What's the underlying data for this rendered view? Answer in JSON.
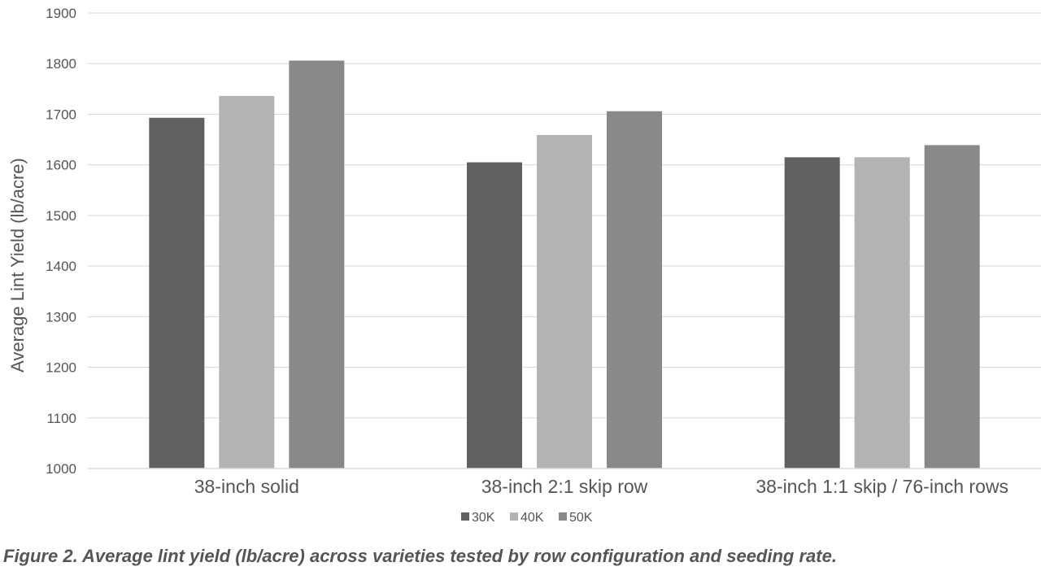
{
  "chart_data": {
    "type": "bar",
    "categories": [
      "38-inch solid",
      "38-inch 2:1 skip row",
      "38-inch 1:1 skip / 76-inch rows"
    ],
    "series": [
      {
        "name": "30K",
        "values": [
          1693,
          1605,
          1615
        ],
        "color": "#606060"
      },
      {
        "name": "40K",
        "values": [
          1736,
          1659,
          1615
        ],
        "color": "#b3b3b3"
      },
      {
        "name": "50K",
        "values": [
          1806,
          1706,
          1639
        ],
        "color": "#898989"
      }
    ],
    "ylabel": "Average Lint Yield (lb/acre)",
    "xlabel": "",
    "ylim": [
      1000,
      1900
    ],
    "yticks": [
      1000,
      1100,
      1200,
      1300,
      1400,
      1500,
      1600,
      1700,
      1800,
      1900
    ],
    "grid": true,
    "legend_position": "bottom"
  },
  "caption": "Figure 2. Average lint yield (lb/acre) across varieties tested by row configuration and seeding rate."
}
